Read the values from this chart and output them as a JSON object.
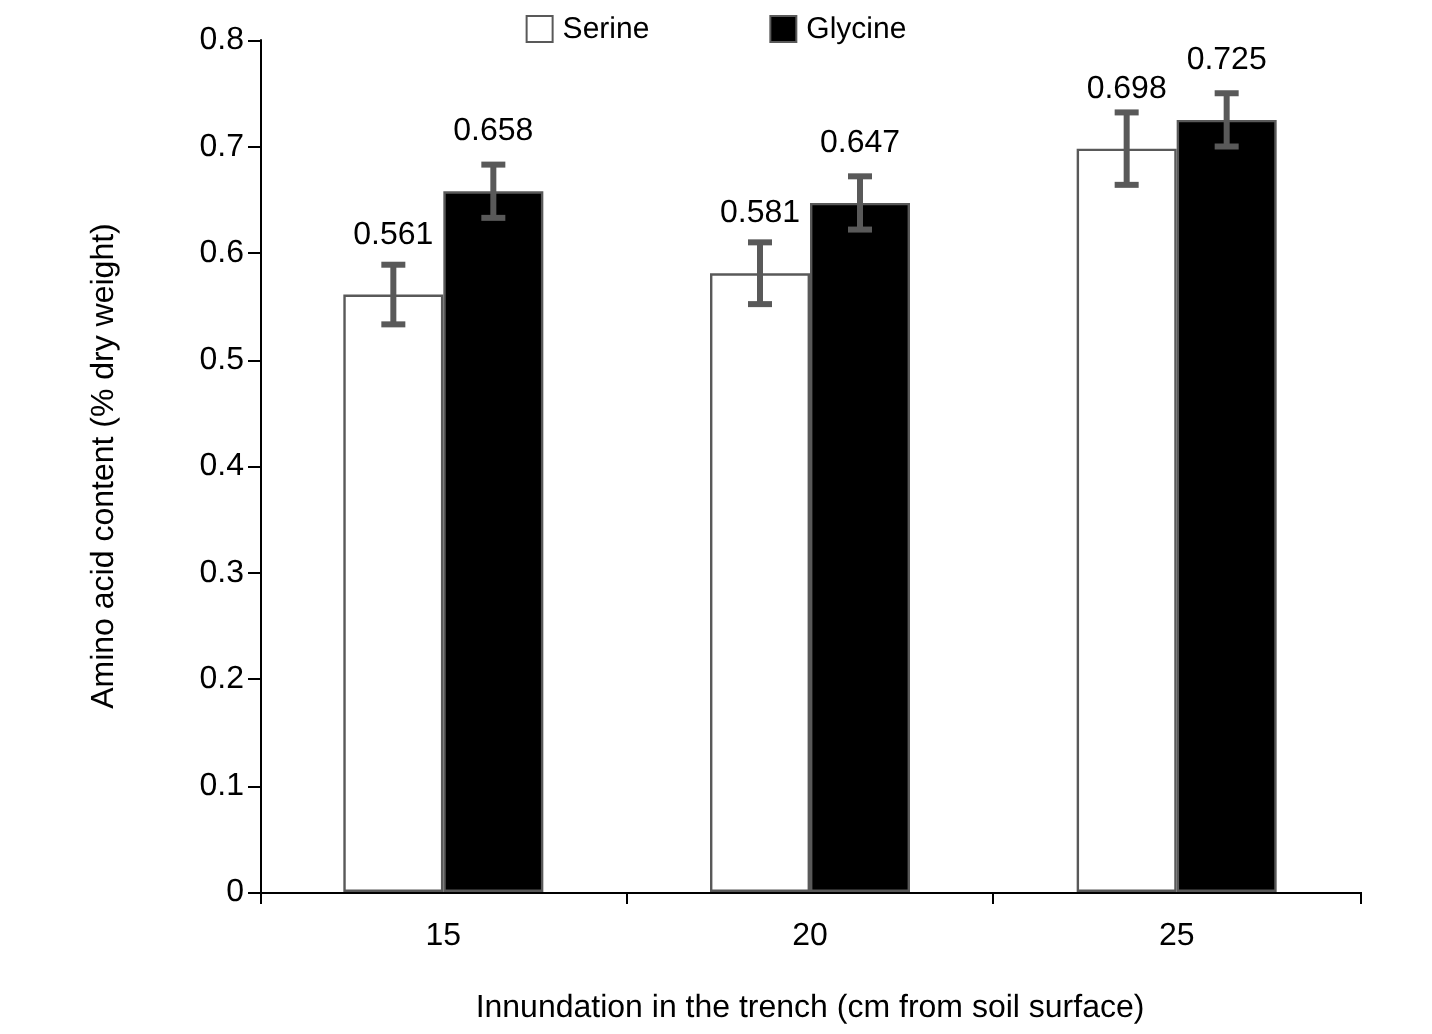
{
  "chart_data": {
    "type": "bar",
    "categories": [
      "15",
      "20",
      "25"
    ],
    "xlabel": "Innundation in the trench (cm from soil surface)",
    "ylabel": "Amino acid content (% dry weight)",
    "series": [
      {
        "name": "Serine",
        "color": "#ffffff",
        "values": [
          0.561,
          0.581,
          0.698
        ],
        "errors": [
          0.028,
          0.029,
          0.034
        ]
      },
      {
        "name": "Glycine",
        "color": "#000000",
        "values": [
          0.658,
          0.647,
          0.725
        ],
        "errors": [
          0.025,
          0.025,
          0.025
        ]
      }
    ],
    "data_labels": true,
    "ylim": [
      0,
      0.8
    ],
    "yticks": [
      0,
      0.1,
      0.2,
      0.3,
      0.4,
      0.5,
      0.6,
      0.7,
      0.8
    ],
    "grid": false,
    "legend": "top"
  }
}
